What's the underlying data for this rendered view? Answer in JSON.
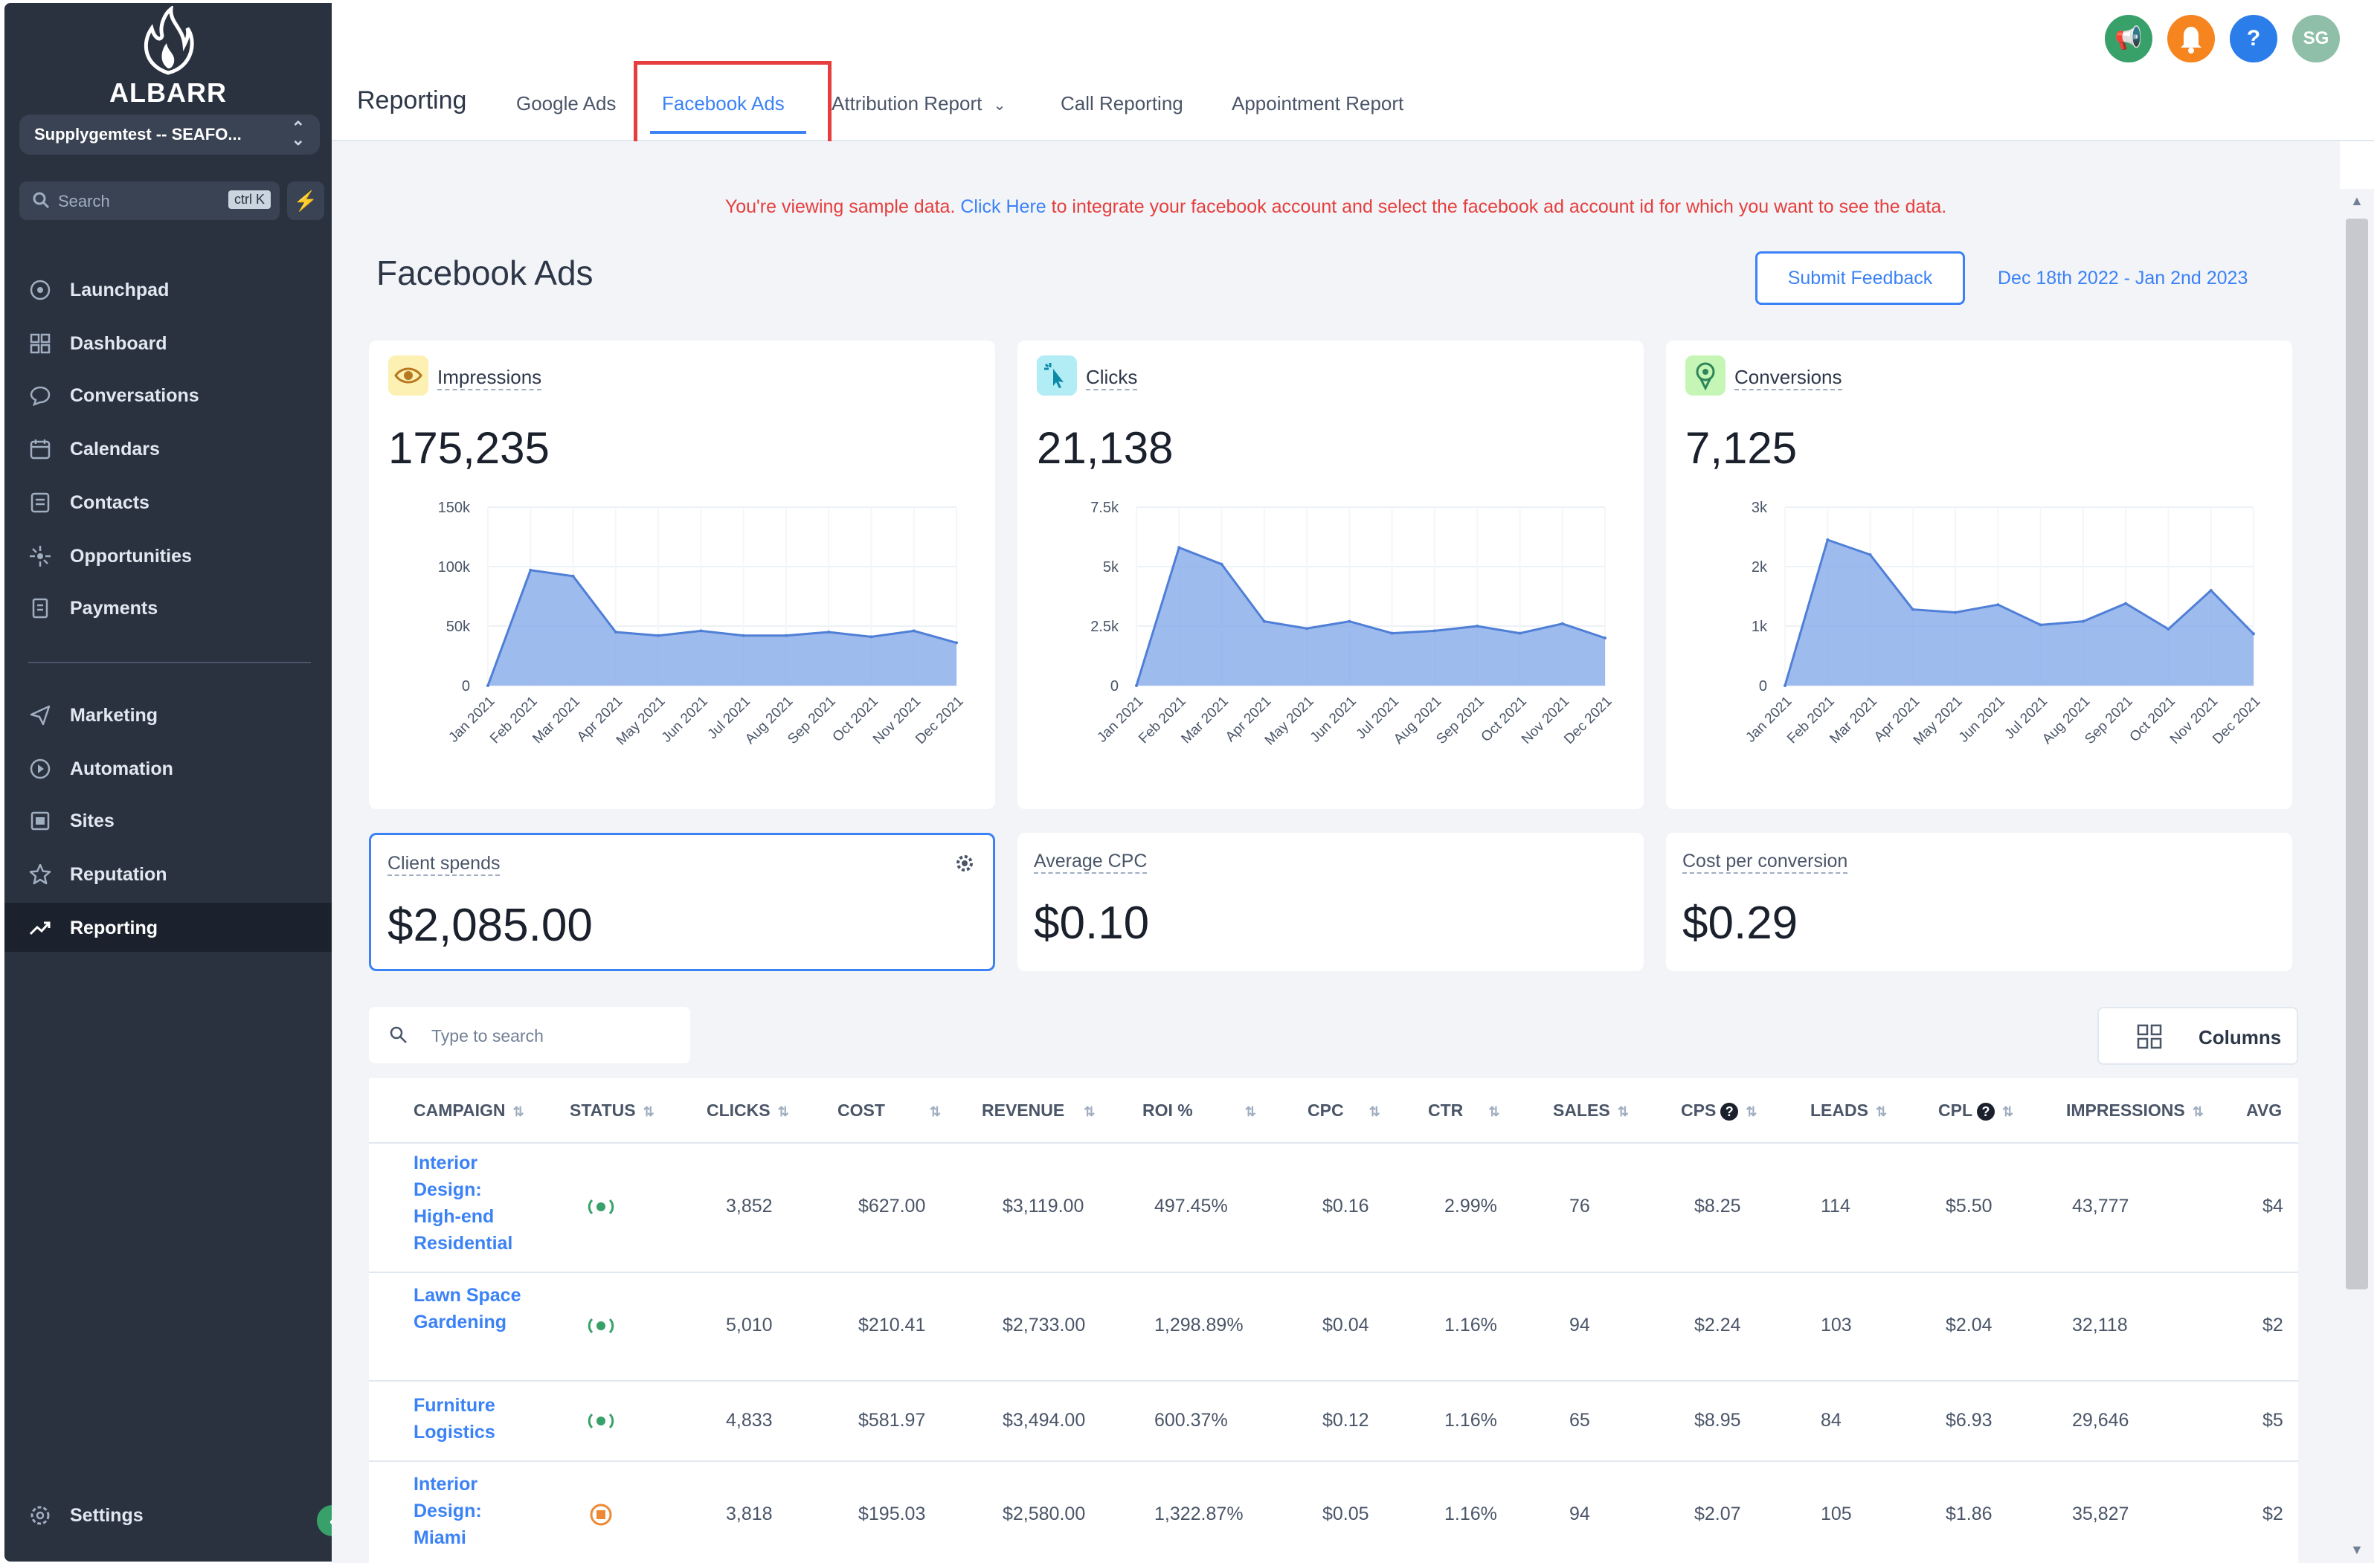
{
  "sidebar": {
    "brand": "ALBARR",
    "account": "Supplygemtest -- SEAFO...",
    "search_placeholder": "Search",
    "search_shortcut": "ctrl K",
    "items": [
      {
        "label": "Launchpad",
        "icon": "rocket-icon"
      },
      {
        "label": "Dashboard",
        "icon": "grid-icon"
      },
      {
        "label": "Conversations",
        "icon": "chat-icon"
      },
      {
        "label": "Calendars",
        "icon": "calendar-icon"
      },
      {
        "label": "Contacts",
        "icon": "contacts-icon"
      },
      {
        "label": "Opportunities",
        "icon": "opportunities-icon"
      },
      {
        "label": "Payments",
        "icon": "payments-icon"
      },
      {
        "label": "Marketing",
        "icon": "send-icon"
      },
      {
        "label": "Automation",
        "icon": "automation-icon"
      },
      {
        "label": "Sites",
        "icon": "sites-icon"
      },
      {
        "label": "Reputation",
        "icon": "star-icon"
      },
      {
        "label": "Reporting",
        "icon": "trend-icon"
      }
    ],
    "settings": "Settings"
  },
  "topbar": {
    "title": "Reporting",
    "tabs": [
      "Google Ads",
      "Facebook Ads",
      "Attribution Report",
      "Call Reporting",
      "Appointment Report"
    ],
    "active_tab": "Facebook Ads",
    "avatar_initials": "SG",
    "help": "?"
  },
  "main": {
    "notice_pre": "You're viewing sample data.",
    "notice_link": "Click Here",
    "notice_post": "to integrate your facebook account and select the facebook ad account id for which you want to see the data.",
    "page_title": "Facebook Ads",
    "feedback_button": "Submit Feedback",
    "date_range": "Dec 18th 2022 - Jan 2nd 2023"
  },
  "chart_data": [
    {
      "type": "area",
      "title": "Impressions",
      "total": "175,235",
      "categories": [
        "Jan 2021",
        "Feb 2021",
        "Mar 2021",
        "Apr 2021",
        "May 2021",
        "Jun 2021",
        "Jul 2021",
        "Aug 2021",
        "Sep 2021",
        "Oct 2021",
        "Nov 2021",
        "Dec 2021"
      ],
      "y_ticks": [
        "0",
        "50k",
        "100k",
        "150k"
      ],
      "ylim": [
        0,
        150000
      ],
      "values": [
        0,
        97000,
        92000,
        45000,
        42000,
        46000,
        42000,
        42000,
        45000,
        41000,
        46000,
        36000
      ],
      "color": "#7ea4e8"
    },
    {
      "type": "area",
      "title": "Clicks",
      "total": "21,138",
      "categories": [
        "Jan 2021",
        "Feb 2021",
        "Mar 2021",
        "Apr 2021",
        "May 2021",
        "Jun 2021",
        "Jul 2021",
        "Aug 2021",
        "Sep 2021",
        "Oct 2021",
        "Nov 2021",
        "Dec 2021"
      ],
      "y_ticks": [
        "0",
        "2.5k",
        "5k",
        "7.5k"
      ],
      "ylim": [
        0,
        7500
      ],
      "values": [
        0,
        5800,
        5100,
        2700,
        2400,
        2700,
        2200,
        2300,
        2500,
        2200,
        2600,
        2000
      ],
      "color": "#7ea4e8"
    },
    {
      "type": "area",
      "title": "Conversions",
      "total": "7,125",
      "categories": [
        "Jan 2021",
        "Feb 2021",
        "Mar 2021",
        "Apr 2021",
        "May 2021",
        "Jun 2021",
        "Jul 2021",
        "Aug 2021",
        "Sep 2021",
        "Oct 2021",
        "Nov 2021",
        "Dec 2021"
      ],
      "y_ticks": [
        "0",
        "1k",
        "2k",
        "3k"
      ],
      "ylim": [
        0,
        3000
      ],
      "values": [
        0,
        2450,
        2200,
        1280,
        1230,
        1360,
        1020,
        1080,
        1380,
        950,
        1600,
        870
      ],
      "color": "#7ea4e8"
    }
  ],
  "kpis": [
    {
      "label": "Client spends",
      "value": "$2,085.00"
    },
    {
      "label": "Average CPC",
      "value": "$0.10"
    },
    {
      "label": "Cost per conversion",
      "value": "$0.29"
    }
  ],
  "table": {
    "search_placeholder": "Type to search",
    "columns_button": "Columns",
    "headers": [
      "CAMPAIGN",
      "STATUS",
      "CLICKS",
      "COST",
      "REVENUE",
      "ROI %",
      "CPC",
      "CTR",
      "SALES",
      "CPS",
      "LEADS",
      "CPL",
      "IMPRESSIONS",
      "AVG"
    ],
    "rows": [
      {
        "campaign": "Interior Design: High-end Residential",
        "status": "active",
        "clicks": "3,852",
        "cost": "$627.00",
        "revenue": "$3,119.00",
        "roi": "497.45%",
        "cpc": "$0.16",
        "ctr": "2.99%",
        "sales": "76",
        "cps": "$8.25",
        "leads": "114",
        "cpl": "$5.50",
        "impressions": "43,777",
        "avg": "$4"
      },
      {
        "campaign": "Lawn Space Gardening",
        "status": "active",
        "clicks": "5,010",
        "cost": "$210.41",
        "revenue": "$2,733.00",
        "roi": "1,298.89%",
        "cpc": "$0.04",
        "ctr": "1.16%",
        "sales": "94",
        "cps": "$2.24",
        "leads": "103",
        "cpl": "$2.04",
        "impressions": "32,118",
        "avg": "$2"
      },
      {
        "campaign": "Furniture Logistics",
        "status": "active",
        "clicks": "4,833",
        "cost": "$581.97",
        "revenue": "$3,494.00",
        "roi": "600.37%",
        "cpc": "$0.12",
        "ctr": "1.16%",
        "sales": "65",
        "cps": "$8.95",
        "leads": "84",
        "cpl": "$6.93",
        "impressions": "29,646",
        "avg": "$5"
      },
      {
        "campaign": "Interior Design: Miami",
        "status": "paused",
        "clicks": "3,818",
        "cost": "$195.03",
        "revenue": "$2,580.00",
        "roi": "1,322.87%",
        "cpc": "$0.05",
        "ctr": "1.16%",
        "sales": "94",
        "cps": "$2.07",
        "leads": "105",
        "cpl": "$1.86",
        "impressions": "35,827",
        "avg": "$2"
      }
    ]
  },
  "colors": {
    "sidebar_bg": "#2a3240",
    "accent": "#3b82f6",
    "notice": "#e53e3e",
    "active_status": "#38a169",
    "paused_status": "#ed8936"
  }
}
